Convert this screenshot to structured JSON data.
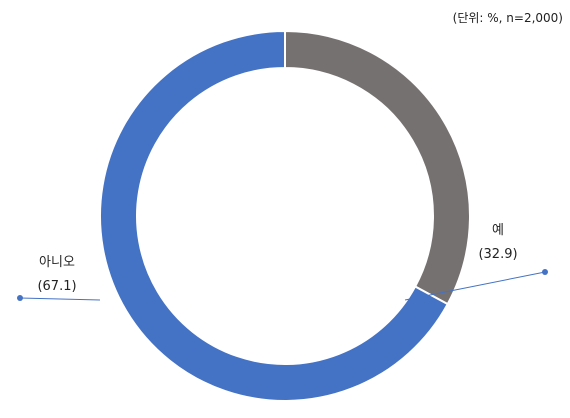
{
  "chart_data": {
    "type": "pie",
    "variant": "donut",
    "unit_note": "(단위: %, n=2,000)",
    "slices": [
      {
        "label": "예",
        "value": 32.9,
        "value_text": "(32.9)",
        "color": "#767171"
      },
      {
        "label": "아니오",
        "value": 67.1,
        "value_text": "(67.1)",
        "color": "#4472c4"
      }
    ],
    "legend": "none"
  }
}
